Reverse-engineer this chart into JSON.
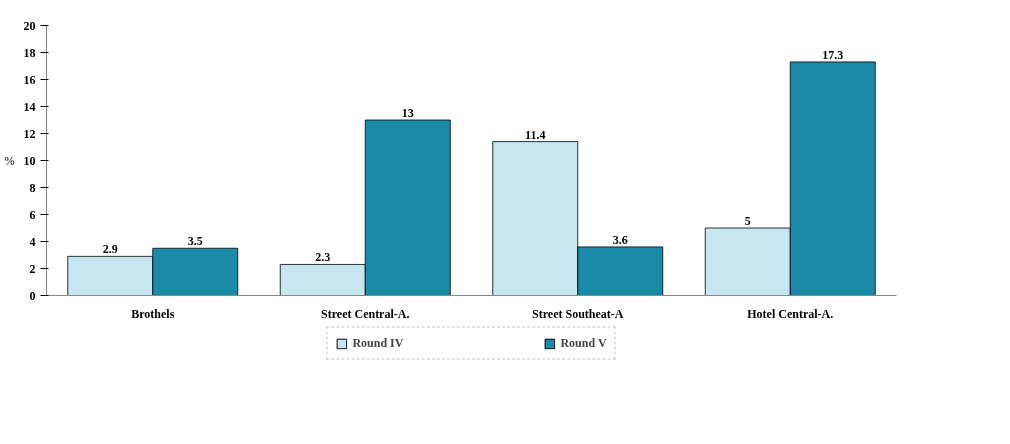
{
  "chart_data": {
    "type": "bar",
    "ylabel": "%",
    "categories": [
      "Brothels",
      "Street Central-A.",
      "Street Southeat-A",
      "Hotel Central-A."
    ],
    "series": [
      {
        "name": "Round IV",
        "color": "#c6e6f0",
        "values": [
          2.9,
          2.3,
          11.4,
          5
        ]
      },
      {
        "name": "Round V",
        "color": "#1a8aa8",
        "values": [
          3.5,
          13,
          3.6,
          17.3
        ]
      }
    ],
    "ylim": [
      0,
      20
    ],
    "yticks": [
      0,
      2,
      4,
      6,
      8,
      10,
      12,
      14,
      16,
      18,
      20
    ],
    "grid": false,
    "legend": "bottom",
    "data_labels": true
  }
}
